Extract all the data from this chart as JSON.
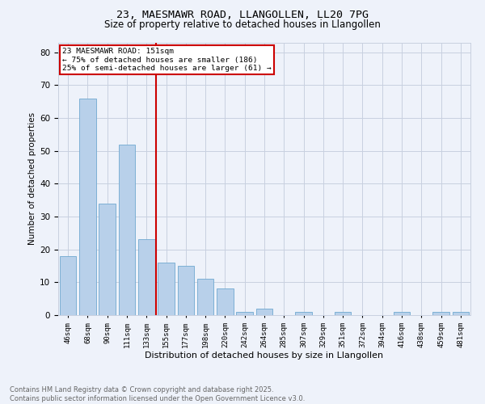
{
  "title1": "23, MAESMAWR ROAD, LLANGOLLEN, LL20 7PG",
  "title2": "Size of property relative to detached houses in Llangollen",
  "xlabel": "Distribution of detached houses by size in Llangollen",
  "ylabel": "Number of detached properties",
  "bar_labels": [
    "46sqm",
    "68sqm",
    "90sqm",
    "111sqm",
    "133sqm",
    "155sqm",
    "177sqm",
    "198sqm",
    "220sqm",
    "242sqm",
    "264sqm",
    "285sqm",
    "307sqm",
    "329sqm",
    "351sqm",
    "372sqm",
    "394sqm",
    "416sqm",
    "438sqm",
    "459sqm",
    "481sqm"
  ],
  "bar_values": [
    18,
    66,
    34,
    52,
    23,
    16,
    15,
    11,
    8,
    1,
    2,
    0,
    1,
    0,
    1,
    0,
    0,
    1,
    0,
    1,
    1
  ],
  "bar_color": "#b8d0ea",
  "bar_edge_color": "#6fa8d0",
  "vline_x": 4.5,
  "vline_color": "#cc0000",
  "annotation_title": "23 MAESMAWR ROAD: 151sqm",
  "annotation_line1": "← 75% of detached houses are smaller (186)",
  "annotation_line2": "25% of semi-detached houses are larger (61) →",
  "annotation_box_color": "#cc0000",
  "ylim": [
    0,
    83
  ],
  "yticks": [
    0,
    10,
    20,
    30,
    40,
    50,
    60,
    70,
    80
  ],
  "footer1": "Contains HM Land Registry data © Crown copyright and database right 2025.",
  "footer2": "Contains public sector information licensed under the Open Government Licence v3.0.",
  "bg_color": "#eef2fa",
  "plot_bg_color": "#eef2fa",
  "grid_color": "#c8d0e0"
}
